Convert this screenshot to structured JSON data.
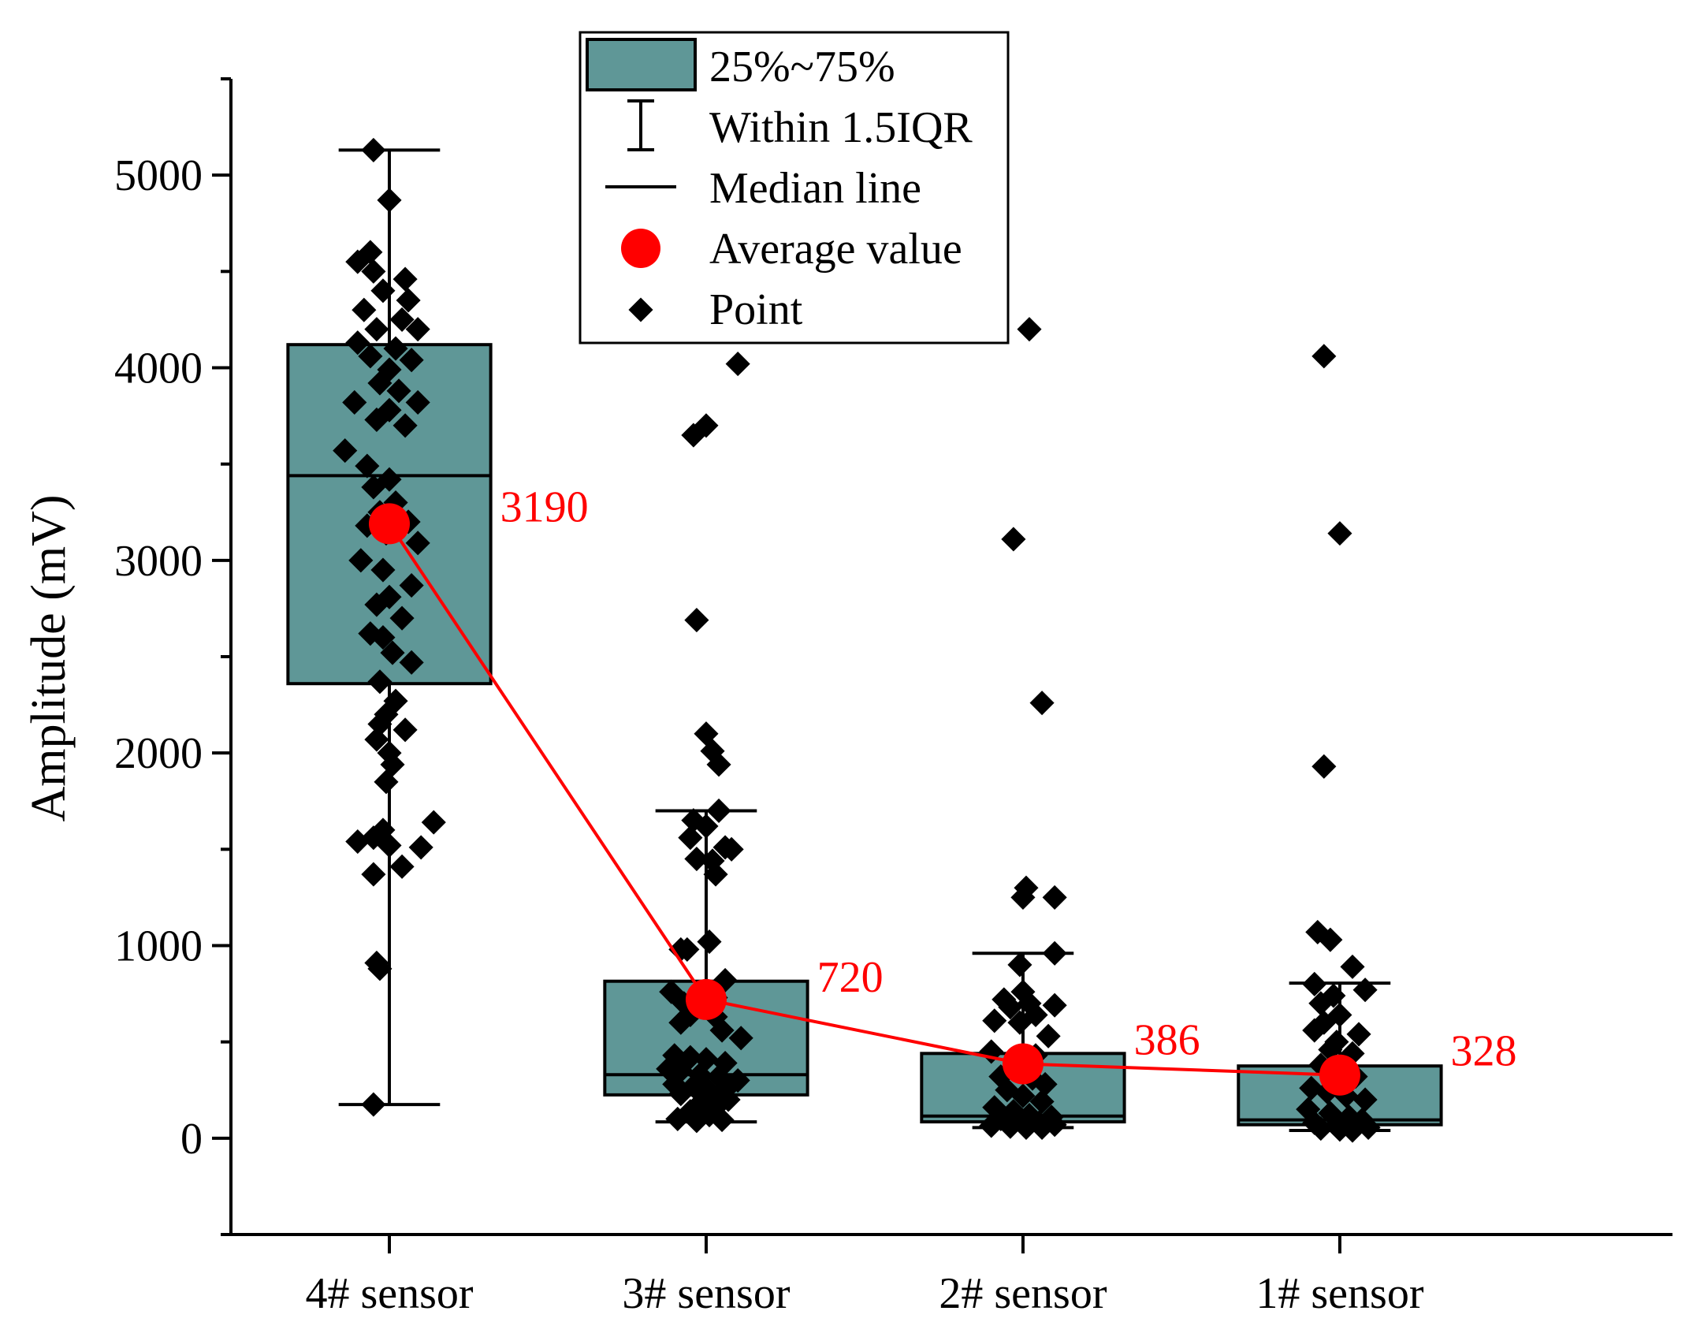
{
  "chart_data": {
    "type": "box",
    "title": "",
    "xlabel": "",
    "ylabel": "Amplitude (mV)",
    "ylim": [
      -500,
      5500
    ],
    "yticks": [
      0,
      1000,
      2000,
      3000,
      4000,
      5000
    ],
    "yticks_labels": [
      "0",
      "1000",
      "2000",
      "3000",
      "4000",
      "5000"
    ],
    "categories": [
      "4# sensor",
      "3# sensor",
      "2# sensor",
      "1# sensor"
    ],
    "box_color": "#5f9797",
    "mean_color": "#ff0000",
    "point_color": "#000000",
    "mean_labels": [
      "3190",
      "720",
      "386",
      "328"
    ],
    "legend": {
      "position": "top-center",
      "items": [
        {
          "symbol": "box",
          "label": "25%~75%"
        },
        {
          "symbol": "whisker",
          "label": "Within 1.5IQR"
        },
        {
          "symbol": "median",
          "label": "Median line"
        },
        {
          "symbol": "mean",
          "label": "Average value"
        },
        {
          "symbol": "point",
          "label": "Point"
        }
      ]
    },
    "series": [
      {
        "name": "4# sensor",
        "q1": 2360,
        "median": 3440,
        "q3": 4120,
        "whisker_low": 175,
        "whisker_high": 5130,
        "mean": 3190,
        "points": [
          [
            -0.05,
            5130
          ],
          [
            0.0,
            4870
          ],
          [
            -0.06,
            4600
          ],
          [
            -0.1,
            4550
          ],
          [
            -0.05,
            4500
          ],
          [
            0.05,
            4460
          ],
          [
            -0.02,
            4400
          ],
          [
            0.06,
            4350
          ],
          [
            -0.08,
            4300
          ],
          [
            0.04,
            4250
          ],
          [
            -0.04,
            4200
          ],
          [
            0.09,
            4200
          ],
          [
            -0.1,
            4130
          ],
          [
            0.02,
            4100
          ],
          [
            -0.06,
            4060
          ],
          [
            0.07,
            4040
          ],
          [
            0.0,
            3990
          ],
          [
            -0.03,
            3920
          ],
          [
            0.03,
            3880
          ],
          [
            0.09,
            3820
          ],
          [
            -0.11,
            3820
          ],
          [
            0.0,
            3780
          ],
          [
            -0.04,
            3730
          ],
          [
            0.05,
            3700
          ],
          [
            -0.14,
            3570
          ],
          [
            -0.07,
            3490
          ],
          [
            0.0,
            3420
          ],
          [
            -0.05,
            3380
          ],
          [
            0.02,
            3300
          ],
          [
            -0.03,
            3250
          ],
          [
            0.06,
            3200
          ],
          [
            -0.07,
            3180
          ],
          [
            -0.01,
            3140
          ],
          [
            0.09,
            3090
          ],
          [
            -0.09,
            3000
          ],
          [
            -0.02,
            2950
          ],
          [
            0.07,
            2870
          ],
          [
            0.0,
            2810
          ],
          [
            -0.04,
            2770
          ],
          [
            0.04,
            2700
          ],
          [
            -0.06,
            2620
          ],
          [
            -0.02,
            2600
          ],
          [
            0.01,
            2520
          ],
          [
            0.07,
            2470
          ],
          [
            -0.03,
            2370
          ],
          [
            0.02,
            2270
          ],
          [
            -0.01,
            2200
          ],
          [
            -0.03,
            2150
          ],
          [
            0.05,
            2120
          ],
          [
            -0.04,
            2070
          ],
          [
            0.0,
            2000
          ],
          [
            0.01,
            1940
          ],
          [
            -0.01,
            1850
          ],
          [
            0.14,
            1640
          ],
          [
            -0.02,
            1600
          ],
          [
            -0.05,
            1560
          ],
          [
            -0.1,
            1540
          ],
          [
            0.0,
            1520
          ],
          [
            0.1,
            1510
          ],
          [
            -0.05,
            1370
          ],
          [
            0.04,
            1410
          ],
          [
            -0.04,
            910
          ],
          [
            -0.03,
            880
          ],
          [
            -0.05,
            175
          ]
        ]
      },
      {
        "name": "3# sensor",
        "q1": 225,
        "median": 330,
        "q3": 815,
        "whisker_low": 85,
        "whisker_high": 1700,
        "mean": 720,
        "points": [
          [
            0.1,
            4020
          ],
          [
            0.0,
            3700
          ],
          [
            -0.04,
            3650
          ],
          [
            -0.03,
            2690
          ],
          [
            0.0,
            2100
          ],
          [
            0.02,
            2010
          ],
          [
            0.04,
            1940
          ],
          [
            0.04,
            1700
          ],
          [
            -0.04,
            1650
          ],
          [
            0.0,
            1620
          ],
          [
            -0.05,
            1560
          ],
          [
            0.06,
            1510
          ],
          [
            0.08,
            1500
          ],
          [
            -0.03,
            1450
          ],
          [
            0.02,
            1440
          ],
          [
            0.03,
            1370
          ],
          [
            -0.08,
            980
          ],
          [
            -0.06,
            980
          ],
          [
            0.01,
            1020
          ],
          [
            0.06,
            820
          ],
          [
            -0.11,
            760
          ],
          [
            0.0,
            760
          ],
          [
            0.03,
            730
          ],
          [
            -0.07,
            700
          ],
          [
            -0.02,
            690
          ],
          [
            -0.05,
            640
          ],
          [
            0.03,
            630
          ],
          [
            -0.08,
            600
          ],
          [
            0.05,
            560
          ],
          [
            0.11,
            520
          ],
          [
            -0.1,
            430
          ],
          [
            -0.05,
            420
          ],
          [
            0.0,
            410
          ],
          [
            0.06,
            390
          ],
          [
            -0.12,
            360
          ],
          [
            -0.08,
            350
          ],
          [
            -0.02,
            330
          ],
          [
            0.04,
            320
          ],
          [
            0.1,
            300
          ],
          [
            -0.1,
            280
          ],
          [
            -0.04,
            270
          ],
          [
            0.0,
            260
          ],
          [
            0.06,
            250
          ],
          [
            -0.08,
            230
          ],
          [
            0.02,
            220
          ],
          [
            0.07,
            200
          ],
          [
            -0.02,
            180
          ],
          [
            0.03,
            160
          ],
          [
            -0.05,
            140
          ],
          [
            0.01,
            120
          ],
          [
            -0.09,
            100
          ],
          [
            0.05,
            95
          ],
          [
            -0.03,
            90
          ]
        ]
      },
      {
        "name": "2# sensor",
        "q1": 85,
        "median": 115,
        "q3": 440,
        "whisker_low": 55,
        "whisker_high": 960,
        "mean": 386,
        "points": [
          [
            0.02,
            4200
          ],
          [
            -0.03,
            3110
          ],
          [
            0.06,
            2260
          ],
          [
            0.01,
            1300
          ],
          [
            0.0,
            1250
          ],
          [
            0.1,
            1250
          ],
          [
            0.1,
            960
          ],
          [
            -0.01,
            900
          ],
          [
            0.0,
            760
          ],
          [
            -0.06,
            720
          ],
          [
            0.02,
            700
          ],
          [
            0.1,
            690
          ],
          [
            -0.04,
            680
          ],
          [
            0.04,
            640
          ],
          [
            -0.09,
            610
          ],
          [
            -0.01,
            600
          ],
          [
            0.08,
            530
          ],
          [
            -0.1,
            450
          ],
          [
            0.04,
            430
          ],
          [
            -0.02,
            380
          ],
          [
            -0.07,
            320
          ],
          [
            0.03,
            310
          ],
          [
            0.07,
            280
          ],
          [
            -0.05,
            250
          ],
          [
            0.0,
            220
          ],
          [
            0.06,
            190
          ],
          [
            -0.09,
            160
          ],
          [
            -0.03,
            140
          ],
          [
            0.02,
            120
          ],
          [
            0.09,
            110
          ],
          [
            -0.07,
            100
          ],
          [
            -0.01,
            90
          ],
          [
            0.05,
            80
          ],
          [
            0.1,
            70
          ],
          [
            -0.1,
            65
          ],
          [
            -0.04,
            60
          ],
          [
            0.01,
            55
          ],
          [
            0.06,
            55
          ]
        ]
      },
      {
        "name": "1# sensor",
        "q1": 70,
        "median": 95,
        "q3": 375,
        "whisker_low": 40,
        "whisker_high": 805,
        "mean": 328,
        "points": [
          [
            -0.05,
            4060
          ],
          [
            0.0,
            3140
          ],
          [
            -0.05,
            1930
          ],
          [
            -0.07,
            1070
          ],
          [
            -0.03,
            1030
          ],
          [
            0.04,
            890
          ],
          [
            0.08,
            770
          ],
          [
            -0.08,
            800
          ],
          [
            -0.02,
            740
          ],
          [
            -0.06,
            700
          ],
          [
            0.0,
            640
          ],
          [
            -0.05,
            600
          ],
          [
            -0.08,
            560
          ],
          [
            0.06,
            540
          ],
          [
            0.04,
            440
          ],
          [
            -0.01,
            500
          ],
          [
            -0.03,
            460
          ],
          [
            -0.06,
            380
          ],
          [
            0.0,
            350
          ],
          [
            0.05,
            320
          ],
          [
            -0.09,
            260
          ],
          [
            -0.04,
            240
          ],
          [
            0.02,
            220
          ],
          [
            0.08,
            200
          ],
          [
            -0.1,
            150
          ],
          [
            -0.03,
            130
          ],
          [
            0.03,
            110
          ],
          [
            0.07,
            95
          ],
          [
            -0.08,
            80
          ],
          [
            -0.01,
            70
          ],
          [
            0.05,
            60
          ],
          [
            0.09,
            55
          ],
          [
            -0.06,
            50
          ],
          [
            0.0,
            45
          ],
          [
            0.04,
            40
          ]
        ]
      }
    ]
  }
}
